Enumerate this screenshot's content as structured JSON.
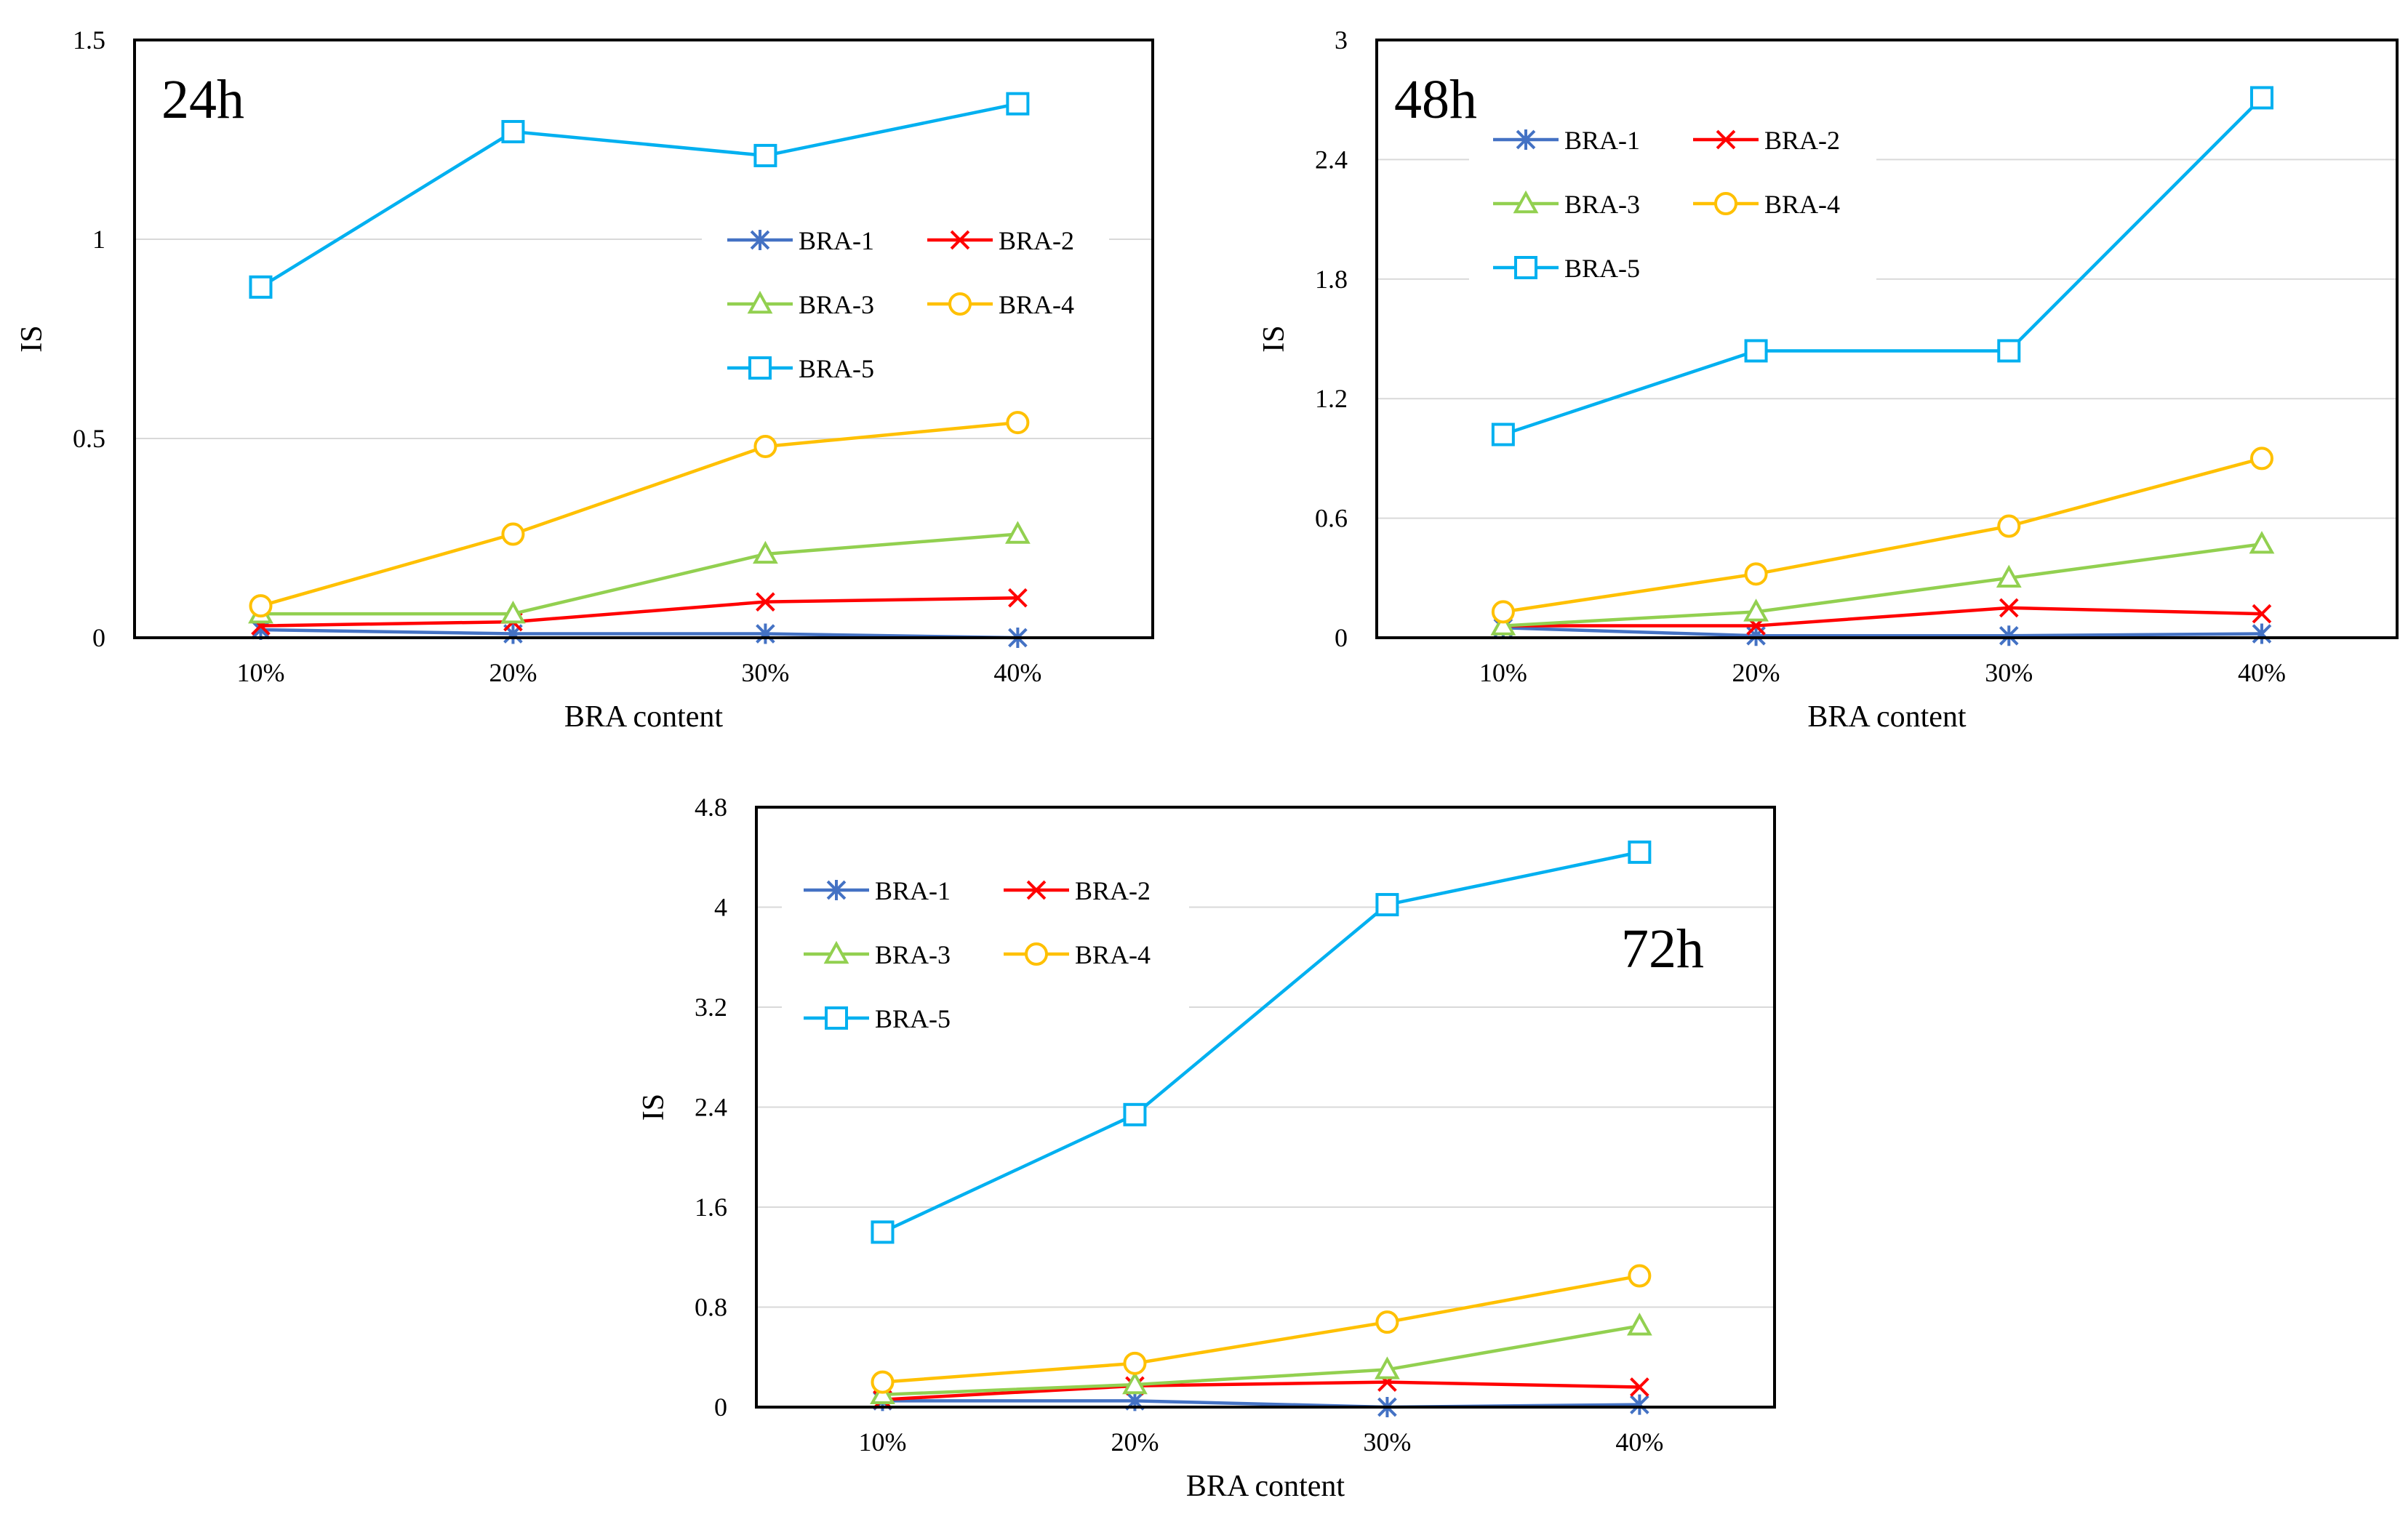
{
  "colors": {
    "BRA-1": "#4472c4",
    "BRA-2": "#ff0000",
    "BRA-3": "#92d050",
    "BRA-4": "#ffc000",
    "BRA-5": "#00b0f0",
    "grid": "#d9d9d9",
    "frame": "#000000"
  },
  "chart_data": [
    {
      "type": "line",
      "title": "24h",
      "title_position": "top-left",
      "xlabel": "BRA content",
      "ylabel": "IS",
      "categories": [
        "10%",
        "20%",
        "30%",
        "40%"
      ],
      "ylim": [
        0,
        1.5
      ],
      "yticks": [
        0,
        0.5,
        1,
        1.5
      ],
      "ytick_labels": [
        "0",
        "0.5",
        "1",
        "1.5"
      ],
      "grid": true,
      "legend": "upper-right",
      "series": [
        {
          "name": "BRA-1",
          "marker": "star",
          "values": [
            0.02,
            0.01,
            0.01,
            0.0
          ]
        },
        {
          "name": "BRA-2",
          "marker": "x",
          "values": [
            0.03,
            0.04,
            0.09,
            0.1
          ]
        },
        {
          "name": "BRA-3",
          "marker": "triangle",
          "values": [
            0.06,
            0.06,
            0.21,
            0.26
          ]
        },
        {
          "name": "BRA-4",
          "marker": "circle",
          "values": [
            0.08,
            0.26,
            0.48,
            0.54
          ]
        },
        {
          "name": "BRA-5",
          "marker": "square",
          "values": [
            0.88,
            1.27,
            1.21,
            1.34
          ]
        }
      ]
    },
    {
      "type": "line",
      "title": "48h",
      "title_position": "top-left",
      "xlabel": "BRA content",
      "ylabel": "IS",
      "categories": [
        "10%",
        "20%",
        "30%",
        "40%"
      ],
      "ylim": [
        0,
        3
      ],
      "yticks": [
        0,
        0.6,
        1.2,
        1.8,
        2.4,
        3
      ],
      "ytick_labels": [
        "0",
        "0.6",
        "1.2",
        "1.8",
        "2.4",
        "3"
      ],
      "grid": true,
      "legend": "upper-left",
      "series": [
        {
          "name": "BRA-1",
          "marker": "star",
          "values": [
            0.05,
            0.01,
            0.01,
            0.02
          ]
        },
        {
          "name": "BRA-2",
          "marker": "x",
          "values": [
            0.06,
            0.06,
            0.15,
            0.12
          ]
        },
        {
          "name": "BRA-3",
          "marker": "triangle",
          "values": [
            0.06,
            0.13,
            0.3,
            0.47
          ]
        },
        {
          "name": "BRA-4",
          "marker": "circle",
          "values": [
            0.13,
            0.32,
            0.56,
            0.9
          ]
        },
        {
          "name": "BRA-5",
          "marker": "square",
          "values": [
            1.02,
            1.44,
            1.44,
            2.71
          ]
        }
      ]
    },
    {
      "type": "line",
      "title": "72h",
      "title_position": "top-right",
      "xlabel": "BRA content",
      "ylabel": "IS",
      "categories": [
        "10%",
        "20%",
        "30%",
        "40%"
      ],
      "ylim": [
        0,
        4.8
      ],
      "yticks": [
        0,
        0.8,
        1.6,
        2.4,
        3.2,
        4,
        4.8
      ],
      "ytick_labels": [
        "0",
        "0.8",
        "1.6",
        "2.4",
        "3.2",
        "4",
        "4.8"
      ],
      "grid": true,
      "legend": "upper-left",
      "series": [
        {
          "name": "BRA-1",
          "marker": "star",
          "values": [
            0.05,
            0.05,
            0.0,
            0.02
          ]
        },
        {
          "name": "BRA-2",
          "marker": "x",
          "values": [
            0.06,
            0.17,
            0.2,
            0.16
          ]
        },
        {
          "name": "BRA-3",
          "marker": "triangle",
          "values": [
            0.1,
            0.18,
            0.3,
            0.65
          ]
        },
        {
          "name": "BRA-4",
          "marker": "circle",
          "values": [
            0.2,
            0.35,
            0.68,
            1.05
          ]
        },
        {
          "name": "BRA-5",
          "marker": "square",
          "values": [
            1.4,
            2.34,
            4.02,
            4.44
          ]
        }
      ]
    }
  ]
}
